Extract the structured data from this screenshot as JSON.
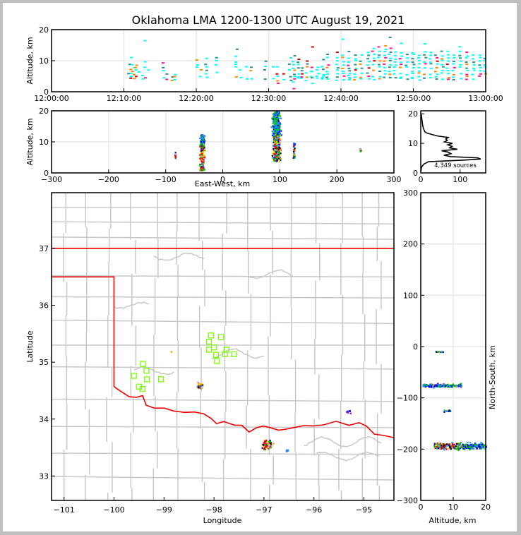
{
  "chart_data": [
    {
      "id": "time-height",
      "type": "scatter",
      "title": "Oklahoma LMA 1200-1300 UTC August 19, 2021",
      "xlabel": "",
      "ylabel": "Altitude, km",
      "xlim": [
        "12:00:00",
        "13:00:00"
      ],
      "ylim": [
        0,
        20
      ],
      "xticks": [
        "12:00:00",
        "12:10:00",
        "12:20:00",
        "12:30:00",
        "12:40:00",
        "12:50:00",
        "13:00:00"
      ],
      "yticks": [
        0,
        10,
        20
      ],
      "grid": true,
      "color_by": "time",
      "columns_minutes": [
        {
          "t": 10.5,
          "alts": [
            6
          ]
        },
        {
          "t": 10.7,
          "alts": [
            4.5,
            6,
            7.5,
            9
          ]
        },
        {
          "t": 10.9,
          "alts": [
            5,
            7,
            9,
            11
          ]
        },
        {
          "t": 11.3,
          "alts": [
            4.5,
            6,
            8
          ]
        },
        {
          "t": 11.5,
          "alts": [
            5,
            7,
            8,
            9
          ]
        },
        {
          "t": 12,
          "alts": [
            6.5
          ]
        },
        {
          "t": 12.4,
          "alts": [
            4.5,
            5.5
          ]
        },
        {
          "t": 12.8,
          "alts": [
            5,
            8,
            10,
            16.5
          ]
        },
        {
          "t": 13.2,
          "alts": [
            7
          ]
        },
        {
          "t": 15.3,
          "alts": [
            5,
            7,
            8,
            9.5
          ]
        },
        {
          "t": 15.7,
          "alts": [
            4.5,
            6
          ]
        },
        {
          "t": 16.4,
          "alts": [
            4,
            5
          ]
        },
        {
          "t": 16.8,
          "alts": [
            4,
            5,
            6
          ]
        },
        {
          "t": 19.9,
          "alts": [
            8,
            9,
            10.5
          ]
        },
        {
          "t": 20.4,
          "alts": [
            5,
            7
          ]
        },
        {
          "t": 21.2,
          "alts": [
            5,
            6,
            7,
            8,
            9,
            11
          ]
        },
        {
          "t": 22.6,
          "alts": [
            6.5,
            9,
            10,
            11
          ]
        },
        {
          "t": 25.4,
          "alts": [
            5,
            8,
            9,
            10,
            11.5,
            14
          ]
        },
        {
          "t": 26,
          "alts": [
            4.5,
            7
          ]
        },
        {
          "t": 26.7,
          "alts": [
            4.5,
            8
          ]
        },
        {
          "t": 27.4,
          "alts": [
            4.5,
            7,
            8
          ]
        },
        {
          "t": 29.4,
          "alts": [
            4.5,
            7.5,
            8.5,
            10
          ]
        },
        {
          "t": 30.5,
          "alts": [
            4.5,
            8
          ]
        },
        {
          "t": 31.1,
          "alts": [
            3,
            4,
            5,
            6,
            8
          ]
        },
        {
          "t": 31.8,
          "alts": [
            4,
            6
          ]
        },
        {
          "t": 32.8,
          "alts": [
            4,
            5,
            7,
            9,
            11
          ]
        },
        {
          "t": 33.3,
          "alts": [
            1,
            3.5,
            4.5,
            5,
            6,
            7,
            8,
            9,
            10,
            12
          ]
        },
        {
          "t": 33.9,
          "alts": [
            4.5,
            5,
            6,
            8,
            9,
            10,
            10.5
          ]
        },
        {
          "t": 34.4,
          "alts": [
            4.5,
            5,
            6,
            7,
            8
          ]
        },
        {
          "t": 35.1,
          "alts": [
            4,
            5,
            6,
            8,
            9,
            10
          ]
        },
        {
          "t": 35.8,
          "alts": [
            3,
            4.5,
            5,
            6.5,
            7,
            8,
            14.5
          ]
        },
        {
          "t": 36.6,
          "alts": [
            4.5,
            5,
            6,
            7.5,
            8
          ]
        },
        {
          "t": 37.3,
          "alts": [
            4.5,
            5,
            5.5,
            6,
            7.5,
            8.5,
            10.5
          ]
        },
        {
          "t": 38,
          "alts": [
            4.5,
            5,
            6,
            7,
            8,
            9,
            11,
            12
          ]
        },
        {
          "t": 39.3,
          "alts": [
            4,
            5,
            6,
            7,
            8,
            9,
            10,
            11,
            13
          ]
        },
        {
          "t": 40.1,
          "alts": [
            4,
            5,
            6,
            7,
            8,
            9,
            10,
            11,
            12,
            17
          ]
        },
        {
          "t": 40.9,
          "alts": [
            4,
            4.5,
            5,
            5.5,
            6,
            7,
            8,
            9,
            10,
            11,
            13.5
          ]
        },
        {
          "t": 41.8,
          "alts": [
            4,
            5,
            6,
            7,
            8,
            9,
            10,
            11,
            12
          ]
        },
        {
          "t": 42.6,
          "alts": [
            4.5,
            5,
            6,
            8,
            9,
            10,
            12
          ]
        },
        {
          "t": 43.6,
          "alts": [
            4.5,
            5,
            6,
            8,
            9,
            10,
            11,
            12,
            13
          ]
        },
        {
          "t": 44.3,
          "alts": [
            4,
            5,
            7,
            9,
            10,
            11,
            12,
            13,
            14
          ]
        },
        {
          "t": 45.1,
          "alts": [
            4.5,
            5,
            7,
            8,
            9,
            10,
            11,
            12,
            13,
            14.5
          ]
        },
        {
          "t": 45.9,
          "alts": [
            5,
            6,
            7,
            8,
            9,
            10,
            11,
            12,
            13,
            14,
            15
          ]
        },
        {
          "t": 46.6,
          "alts": [
            4.5,
            6,
            7,
            8,
            9,
            10,
            11,
            12,
            13,
            14,
            17.5
          ]
        },
        {
          "t": 47.3,
          "alts": [
            4.5,
            6,
            7,
            8,
            9,
            10,
            11,
            12,
            13
          ]
        },
        {
          "t": 48.1,
          "alts": [
            4.5,
            5,
            6,
            8,
            9,
            10,
            11,
            12,
            13,
            16
          ]
        },
        {
          "t": 48.9,
          "alts": [
            4.5,
            6,
            8,
            9,
            10,
            11,
            12
          ]
        },
        {
          "t": 49.8,
          "alts": [
            4.5,
            5,
            6,
            7,
            8,
            9,
            10,
            11,
            12,
            13
          ]
        },
        {
          "t": 50.6,
          "alts": [
            4,
            5,
            6,
            7,
            8,
            9,
            10,
            11,
            12
          ]
        },
        {
          "t": 51.4,
          "alts": [
            4.5,
            6,
            8,
            9,
            10,
            11,
            12,
            13,
            15.5
          ]
        },
        {
          "t": 52.2,
          "alts": [
            4.5,
            6,
            8,
            9,
            10,
            11,
            12,
            13
          ]
        },
        {
          "t": 53,
          "alts": [
            4.5,
            5,
            6,
            7,
            8,
            9,
            10,
            11,
            12
          ]
        },
        {
          "t": 53.8,
          "alts": [
            4.5,
            6,
            7,
            8,
            9,
            10,
            11,
            12,
            13
          ]
        },
        {
          "t": 54.6,
          "alts": [
            4.5,
            5,
            6,
            7,
            8,
            9,
            10,
            11,
            12,
            13
          ]
        },
        {
          "t": 55.4,
          "alts": [
            4,
            5,
            6,
            7,
            8,
            9,
            10,
            11,
            12
          ]
        },
        {
          "t": 56.3,
          "alts": [
            4.5,
            6,
            8,
            9,
            10,
            11,
            12,
            13,
            15
          ]
        },
        {
          "t": 57.2,
          "alts": [
            4.5,
            5,
            6,
            7,
            8,
            9,
            10,
            11,
            12,
            13
          ]
        },
        {
          "t": 58.1,
          "alts": [
            4.5,
            6,
            7,
            8,
            9,
            10,
            11,
            12
          ]
        },
        {
          "t": 59,
          "alts": [
            5,
            6,
            7,
            8,
            9,
            10,
            11,
            12
          ]
        },
        {
          "t": 59.7,
          "alts": [
            6,
            7,
            8,
            9,
            10,
            11
          ]
        }
      ]
    },
    {
      "id": "east-west-altitude",
      "type": "scatter",
      "title": "",
      "xlabel": "East-West, km",
      "ylabel": "Altitude, km",
      "xlim": [
        -300,
        300
      ],
      "ylim": [
        0,
        20
      ],
      "xticks": [
        -300,
        -200,
        -100,
        0,
        100,
        200,
        300
      ],
      "yticks": [
        0,
        10,
        20
      ],
      "grid": true,
      "clusters": [
        {
          "x_center": -37,
          "x_spread": 6,
          "alt_min": 1,
          "alt_max": 12.5,
          "core_alt": 5
        },
        {
          "x_center": 93,
          "x_spread": 10,
          "alt_min": 4,
          "alt_max": 20,
          "core_alt": 8
        },
        {
          "x_center": -84,
          "x_spread": 1,
          "alt_min": 4.5,
          "alt_max": 7,
          "core_alt": 6
        },
        {
          "x_center": 124,
          "x_spread": 2,
          "alt_min": 5,
          "alt_max": 10,
          "core_alt": 7
        },
        {
          "x_center": 240,
          "x_spread": 4,
          "alt_min": 7,
          "alt_max": 8,
          "core_alt": 7.5
        }
      ]
    },
    {
      "id": "altitude-histogram",
      "type": "line",
      "title": "",
      "xlabel": "",
      "ylabel": "",
      "xlim": [
        0,
        165
      ],
      "ylim": [
        0,
        21
      ],
      "xticks": [
        0,
        100
      ],
      "yticks": [
        0,
        10,
        20
      ],
      "annotation": "4,349 sources",
      "profile": [
        [
          0.5,
          0
        ],
        [
          1,
          1
        ],
        [
          2,
          2
        ],
        [
          3,
          8
        ],
        [
          3.8,
          20
        ],
        [
          4.3,
          100
        ],
        [
          4.7,
          150
        ],
        [
          5.1,
          140
        ],
        [
          5.5,
          80
        ],
        [
          6,
          62
        ],
        [
          6.5,
          85
        ],
        [
          7,
          72
        ],
        [
          7.5,
          60
        ],
        [
          8,
          88
        ],
        [
          8.5,
          70
        ],
        [
          9,
          82
        ],
        [
          9.5,
          60
        ],
        [
          10,
          78
        ],
        [
          10.5,
          66
        ],
        [
          11,
          75
        ],
        [
          11.5,
          60
        ],
        [
          12,
          70
        ],
        [
          12.5,
          40
        ],
        [
          13,
          28
        ],
        [
          13.5,
          15
        ],
        [
          14,
          10
        ],
        [
          15,
          7
        ],
        [
          16,
          5
        ],
        [
          17,
          4
        ],
        [
          18,
          3
        ],
        [
          19,
          2
        ],
        [
          20,
          1
        ]
      ]
    },
    {
      "id": "plan-view-map",
      "type": "scatter",
      "title": "",
      "xlabel": "Longitude",
      "ylabel": "Latitude",
      "xlim": [
        -101.25,
        -94.4
      ],
      "ylim": [
        32.57,
        37.98
      ],
      "xticks": [
        -101,
        -100,
        -99,
        -98,
        -97,
        -96,
        -95
      ],
      "yticks": [
        33,
        34,
        35,
        36,
        37
      ],
      "grid": false,
      "stations": [
        [
          -98.06,
          35.47
        ],
        [
          -97.86,
          35.44
        ],
        [
          -98.1,
          35.36
        ],
        [
          -98.0,
          35.26
        ],
        [
          -98.1,
          35.22
        ],
        [
          -97.75,
          35.22
        ],
        [
          -97.96,
          35.13
        ],
        [
          -97.78,
          35.14
        ],
        [
          -97.6,
          35.14
        ],
        [
          -97.94,
          35.02
        ],
        [
          -99.42,
          34.97
        ],
        [
          -99.35,
          34.85
        ],
        [
          -99.6,
          34.76
        ],
        [
          -99.34,
          34.7
        ],
        [
          -99.06,
          34.7
        ],
        [
          -99.5,
          34.57
        ],
        [
          -99.43,
          34.53
        ]
      ],
      "source_clusters": [
        {
          "lon": -98.29,
          "lat": 34.6,
          "spread": 0.07,
          "n": 40
        },
        {
          "lon": -96.95,
          "lat": 33.56,
          "spread": 0.1,
          "n": 140
        },
        {
          "lon": -96.55,
          "lat": 33.46,
          "spread": 0.03,
          "n": 5
        },
        {
          "lon": -95.32,
          "lat": 34.15,
          "spread": 0.06,
          "n": 8
        },
        {
          "lon": -98.87,
          "lat": 35.2,
          "spread": 0.01,
          "n": 1
        }
      ]
    },
    {
      "id": "altitude-north-south",
      "type": "scatter",
      "title": "",
      "xlabel": "Altitude, km",
      "ylabel": "North-South, km",
      "xlim": [
        0,
        20
      ],
      "ylim": [
        -300,
        300
      ],
      "xticks": [
        0,
        10,
        20
      ],
      "yticks": [
        -300,
        -200,
        -100,
        0,
        100,
        200,
        300
      ],
      "grid": true,
      "clusters": [
        {
          "ns_center": -193,
          "ns_spread": 9,
          "alt_min": 4,
          "alt_max": 20,
          "core_alt": 8
        },
        {
          "ns_center": -75,
          "ns_spread": 5,
          "alt_min": 0.5,
          "alt_max": 12.5,
          "core_alt": 5
        },
        {
          "ns_center": -124,
          "ns_spread": 3,
          "alt_min": 7,
          "alt_max": 9,
          "core_alt": 7.5
        },
        {
          "ns_center": -9,
          "ns_spread": 1,
          "alt_min": 4.5,
          "alt_max": 7,
          "core_alt": 6
        }
      ]
    }
  ],
  "palette": {
    "time": [
      "#00ffff",
      "#2f8f8f",
      "#ff8c00",
      "#ff1493",
      "#d00000",
      "#000000"
    ],
    "density": [
      "#0000ff",
      "#1e90ff",
      "#00c000",
      "#ffff00",
      "#ffa500",
      "#ff0000",
      "#d00040",
      "#000000",
      "#c0c0c0"
    ],
    "state_border": "#ee0000",
    "county_border": "#c8c8c8",
    "station": "#7cfc00",
    "grid": "#e8e8e8"
  }
}
